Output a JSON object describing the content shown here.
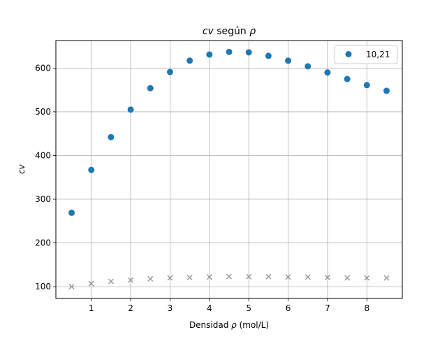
{
  "chart_data": {
    "type": "scatter",
    "title": "cv según ρ",
    "title_parts": {
      "var": "cv",
      "middle": " según ",
      "rho": "ρ"
    },
    "xlabel": "Densidad ρ (mol/L)",
    "xlabel_parts": {
      "prefix": "Densidad ",
      "rho": "ρ",
      "suffix": " (mol/L)"
    },
    "ylabel": "cv",
    "xlim": [
      0.1,
      8.9
    ],
    "ylim": [
      73,
      663
    ],
    "xticks": [
      1,
      2,
      3,
      4,
      5,
      6,
      7,
      8
    ],
    "yticks": [
      100,
      200,
      300,
      400,
      500,
      600
    ],
    "grid": true,
    "legend": {
      "position": "top-right",
      "entries": [
        "10,21"
      ]
    },
    "series": [
      {
        "name": "10,21",
        "marker": "circle",
        "color": "#1f77b4",
        "x": [
          0.5,
          1.0,
          1.5,
          2.0,
          2.5,
          3.0,
          3.5,
          4.0,
          4.5,
          5.0,
          5.5,
          6.0,
          6.5,
          7.0,
          7.5,
          8.0,
          8.5
        ],
        "y": [
          269,
          367,
          442,
          505,
          554,
          591,
          617,
          631,
          637,
          636,
          628,
          617,
          604,
          590,
          575,
          561,
          548
        ]
      },
      {
        "marker": "x",
        "color": "#999999",
        "x": [
          0.5,
          1.0,
          1.5,
          2.0,
          2.5,
          3.0,
          3.5,
          4.0,
          4.5,
          5.0,
          5.5,
          6.0,
          6.5,
          7.0,
          7.5,
          8.0,
          8.5
        ],
        "y": [
          100,
          107,
          112,
          115,
          118,
          120,
          121,
          122,
          123,
          123,
          123,
          122,
          122,
          121,
          120,
          120,
          120
        ]
      }
    ]
  }
}
